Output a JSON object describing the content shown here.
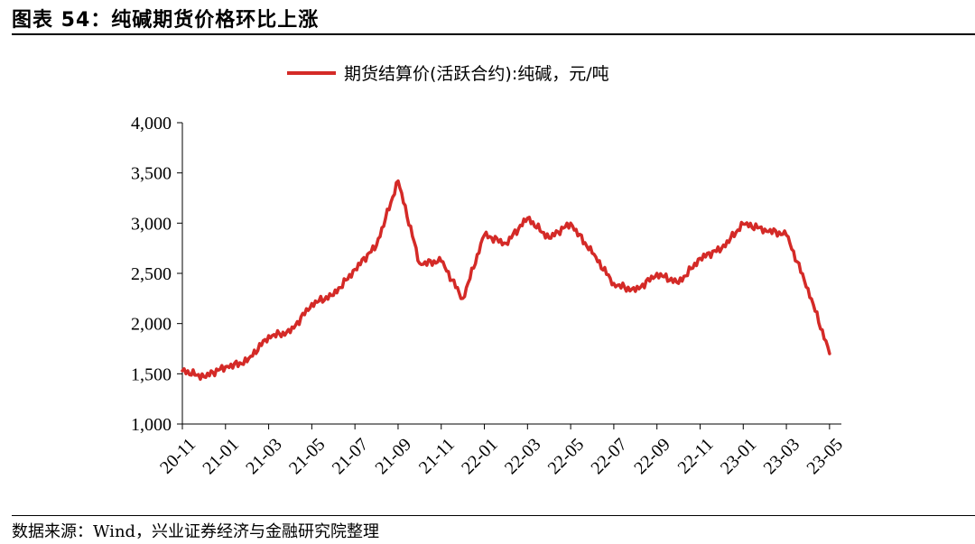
{
  "header": {
    "title": "图表 54：纯碱期货价格环比上涨"
  },
  "footer": {
    "source": "数据来源：Wind，兴业证券经济与金融研究院整理"
  },
  "chart_data": {
    "type": "line",
    "title": "",
    "xlabel": "",
    "ylabel": "",
    "ylim": [
      1000,
      4000
    ],
    "y_ticks": [
      1000,
      1500,
      2000,
      2500,
      3000,
      3500,
      4000
    ],
    "y_tick_labels": [
      "1,000",
      "1,500",
      "2,000",
      "2,500",
      "3,000",
      "3,500",
      "4,000"
    ],
    "x_tick_labels": [
      "20-11",
      "21-01",
      "21-03",
      "21-05",
      "21-07",
      "21-09",
      "21-11",
      "22-01",
      "22-03",
      "22-05",
      "22-07",
      "22-09",
      "22-11",
      "23-01",
      "23-03",
      "23-05"
    ],
    "legend_position": "top-center",
    "grid": false,
    "series": [
      {
        "name": "期货结算价(活跃合约):纯碱，元/吨",
        "color": "#d42a27",
        "x": [
          "2020-11",
          "2020-12",
          "2021-01",
          "2021-02",
          "2021-03",
          "2021-04",
          "2021-05",
          "2021-06",
          "2021-07",
          "2021-08",
          "2021-09",
          "2021-10",
          "2021-11",
          "2021-12",
          "2022-01",
          "2022-02",
          "2022-03",
          "2022-04",
          "2022-05",
          "2022-06",
          "2022-07",
          "2022-08",
          "2022-09",
          "2022-10",
          "2022-11",
          "2022-12",
          "2023-01",
          "2023-02",
          "2023-03",
          "2023-04",
          "2023-05"
        ],
        "values": [
          1530,
          1470,
          1570,
          1620,
          1880,
          1910,
          2200,
          2280,
          2540,
          2780,
          3420,
          2600,
          2620,
          2250,
          2880,
          2800,
          3050,
          2850,
          3000,
          2700,
          2400,
          2320,
          2500,
          2400,
          2650,
          2750,
          2990,
          2940,
          2880,
          2350,
          1700
        ]
      }
    ]
  }
}
